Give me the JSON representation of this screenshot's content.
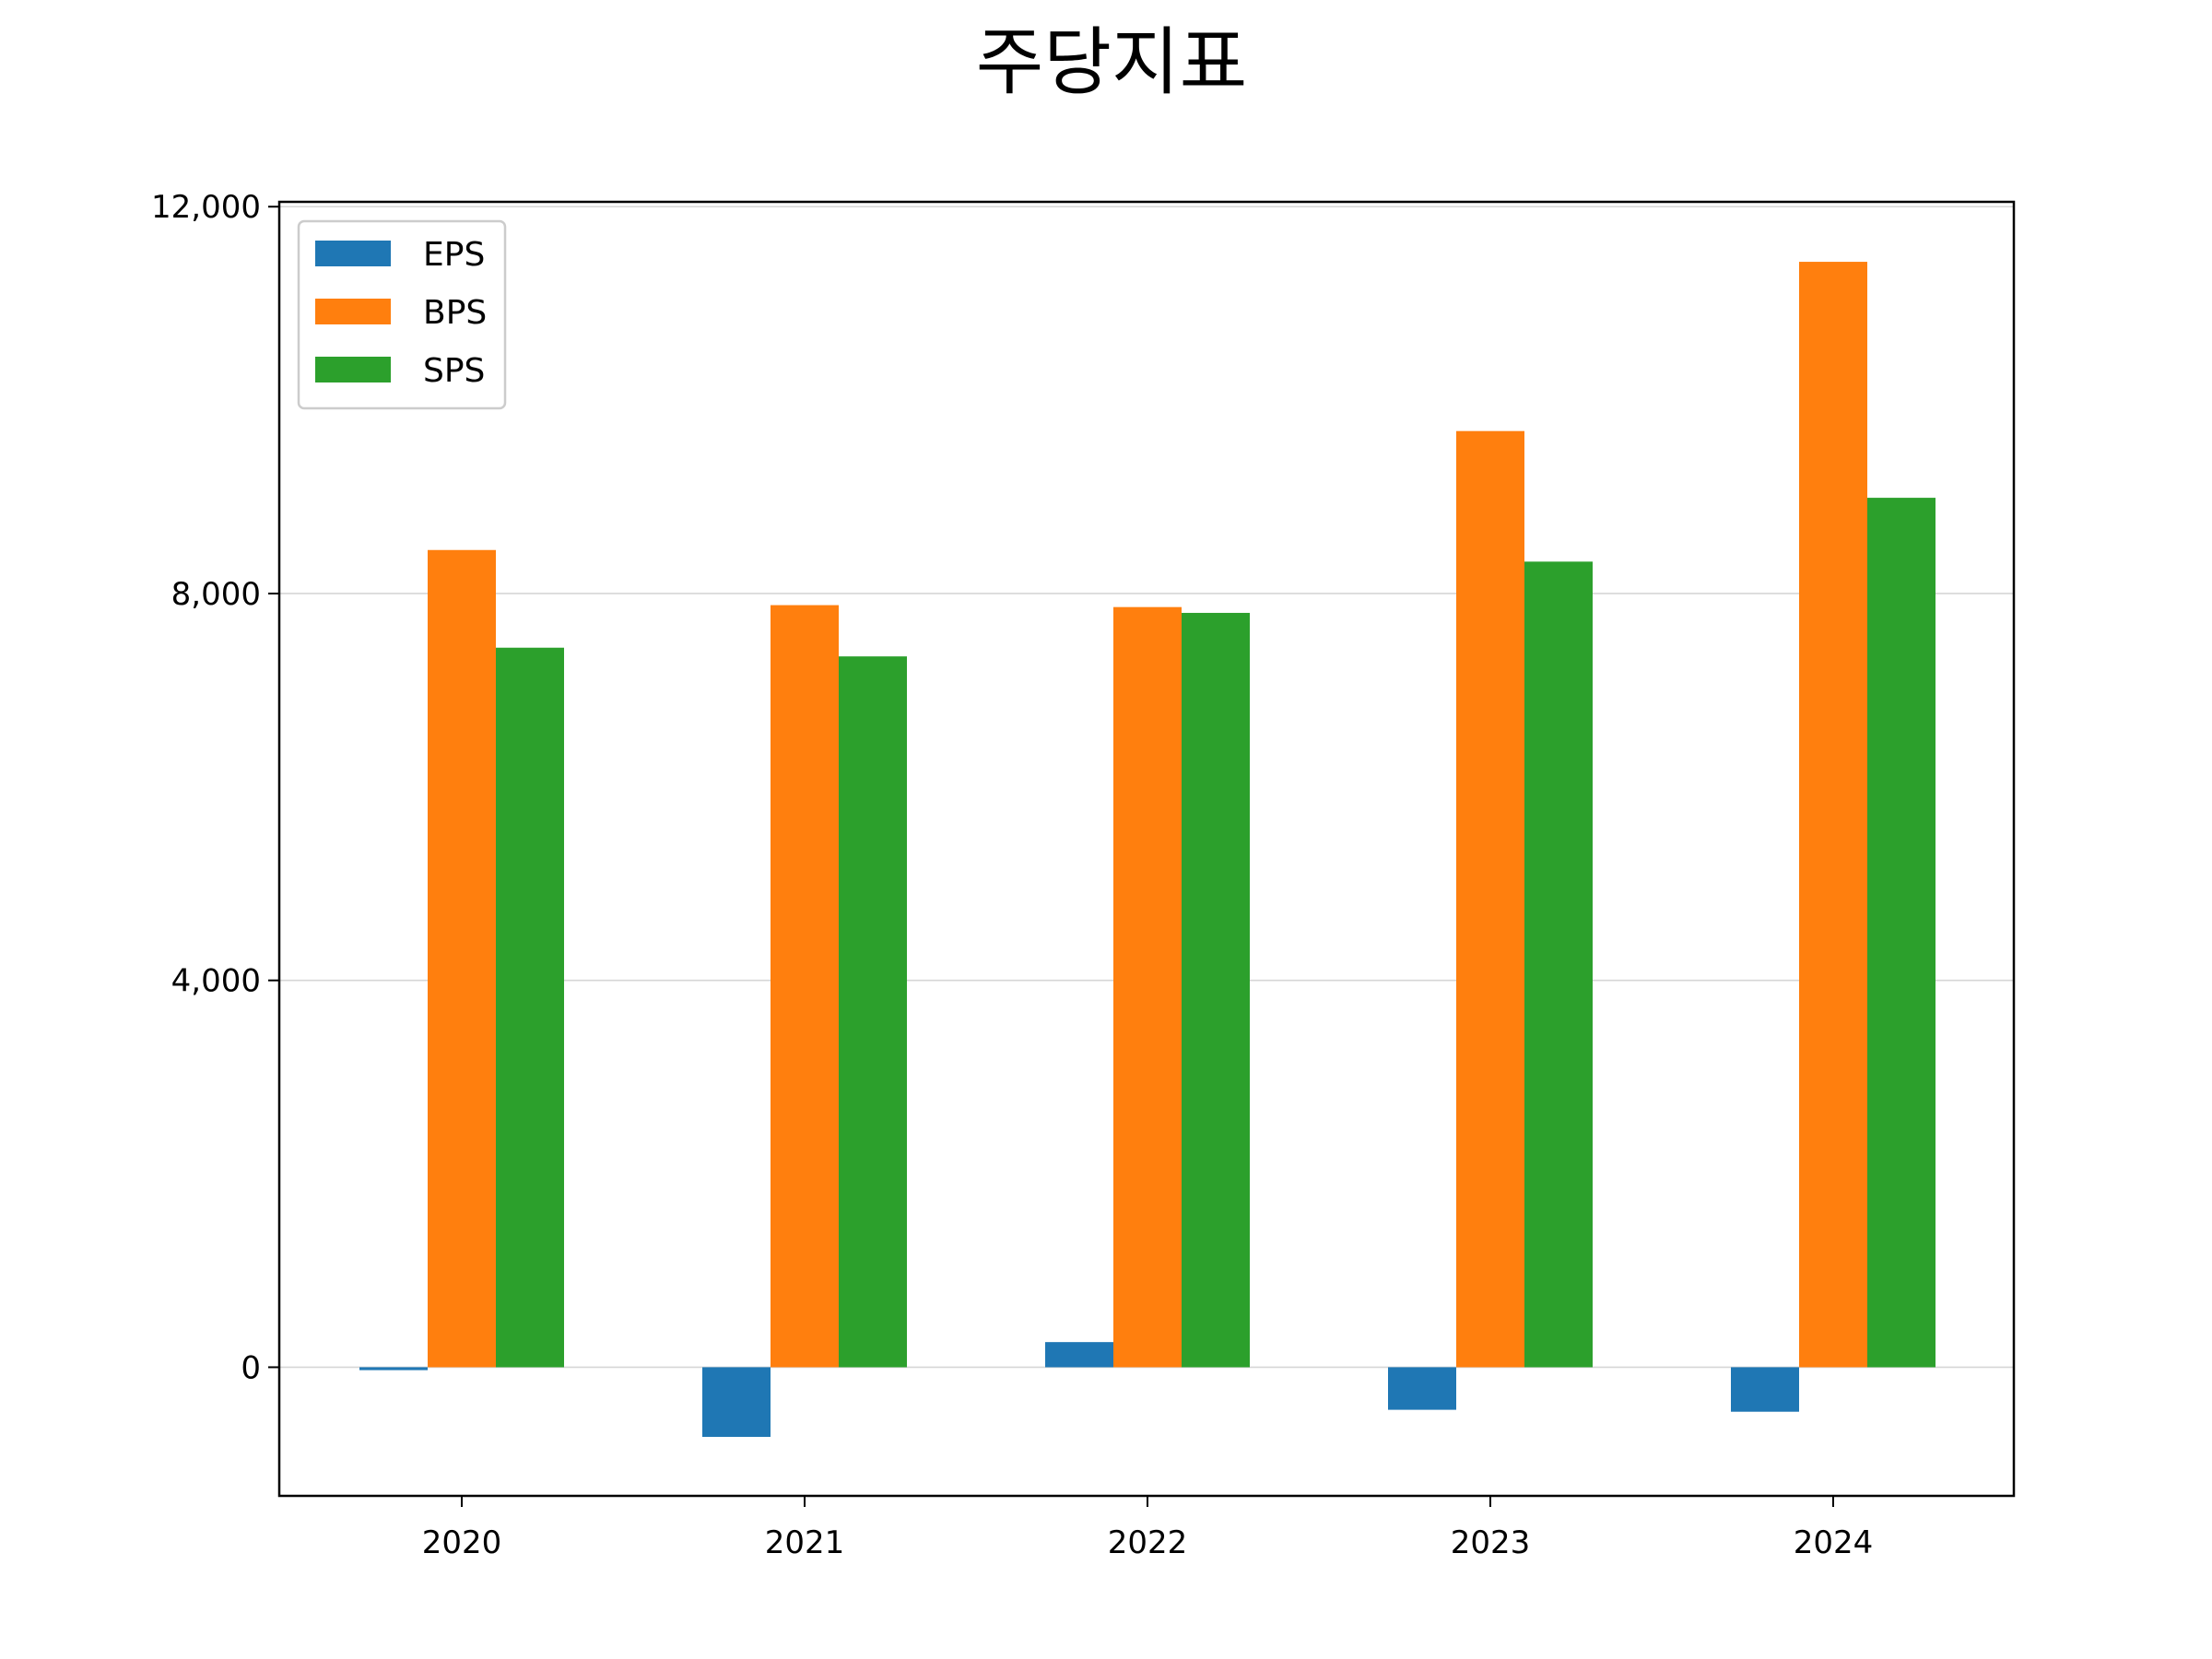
{
  "chart_data": {
    "type": "bar",
    "title": "주당지표",
    "xlabel": "",
    "ylabel": "",
    "categories": [
      "2020",
      "2021",
      "2022",
      "2023",
      "2024"
    ],
    "series": [
      {
        "name": "EPS",
        "color": "#1f77b4",
        "values": [
          -30,
          -720,
          260,
          -440,
          -460
        ]
      },
      {
        "name": "BPS",
        "color": "#ff7f0e",
        "values": [
          8450,
          7880,
          7860,
          9680,
          11430
        ]
      },
      {
        "name": "SPS",
        "color": "#2ca02c",
        "values": [
          7440,
          7350,
          7800,
          8330,
          8990
        ]
      }
    ],
    "ylim": [
      -1330,
      12050
    ],
    "yticks": [
      0,
      4000,
      8000,
      12000
    ],
    "ytick_labels": [
      "0",
      "4,000",
      "8,000",
      "12,000"
    ],
    "grid": "y",
    "legend_position": "upper-left"
  }
}
